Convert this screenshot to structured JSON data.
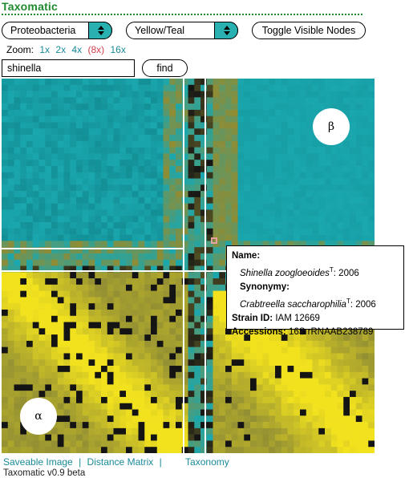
{
  "app": {
    "title": "Taxomatic",
    "version": "Taxomatic v0.9 beta"
  },
  "controls": {
    "taxon_select": "Proteobacteria",
    "color_select": "Yellow/Teal",
    "toggle_label": "Toggle Visible Nodes",
    "zoom_label": "Zoom:",
    "zoom_levels": [
      "1x",
      "2x",
      "4x",
      "(8x)",
      "16x"
    ],
    "zoom_selected": "(8x)",
    "search_value": "shinella",
    "find_label": "find"
  },
  "matrix": {
    "palette": {
      "teal": "#1aa7ae",
      "yellow": "#f2e21e",
      "dark": "#141414",
      "olive": "#8f8c34"
    },
    "regions": {
      "beta_label": "β",
      "alpha_label": "α"
    }
  },
  "tooltip": {
    "name_label": "Name:",
    "name_value": "Shinella zoogloeoides",
    "name_sup": "T",
    "name_year": ": 2006",
    "synonymy_label": "Synonymy:",
    "synonymy_value": "Crabtreella saccharophilia",
    "synonymy_sup": "T",
    "synonymy_year": ": 2006",
    "strain_label": "Strain ID:",
    "strain_value": "IAM 12669",
    "accessions_label": "Accessions:",
    "accessions_value": "16S rRNAAB238789"
  },
  "footer": {
    "links": [
      "Saveable Image",
      "Distance Matrix",
      "Taxonomy"
    ],
    "separator": "|"
  }
}
